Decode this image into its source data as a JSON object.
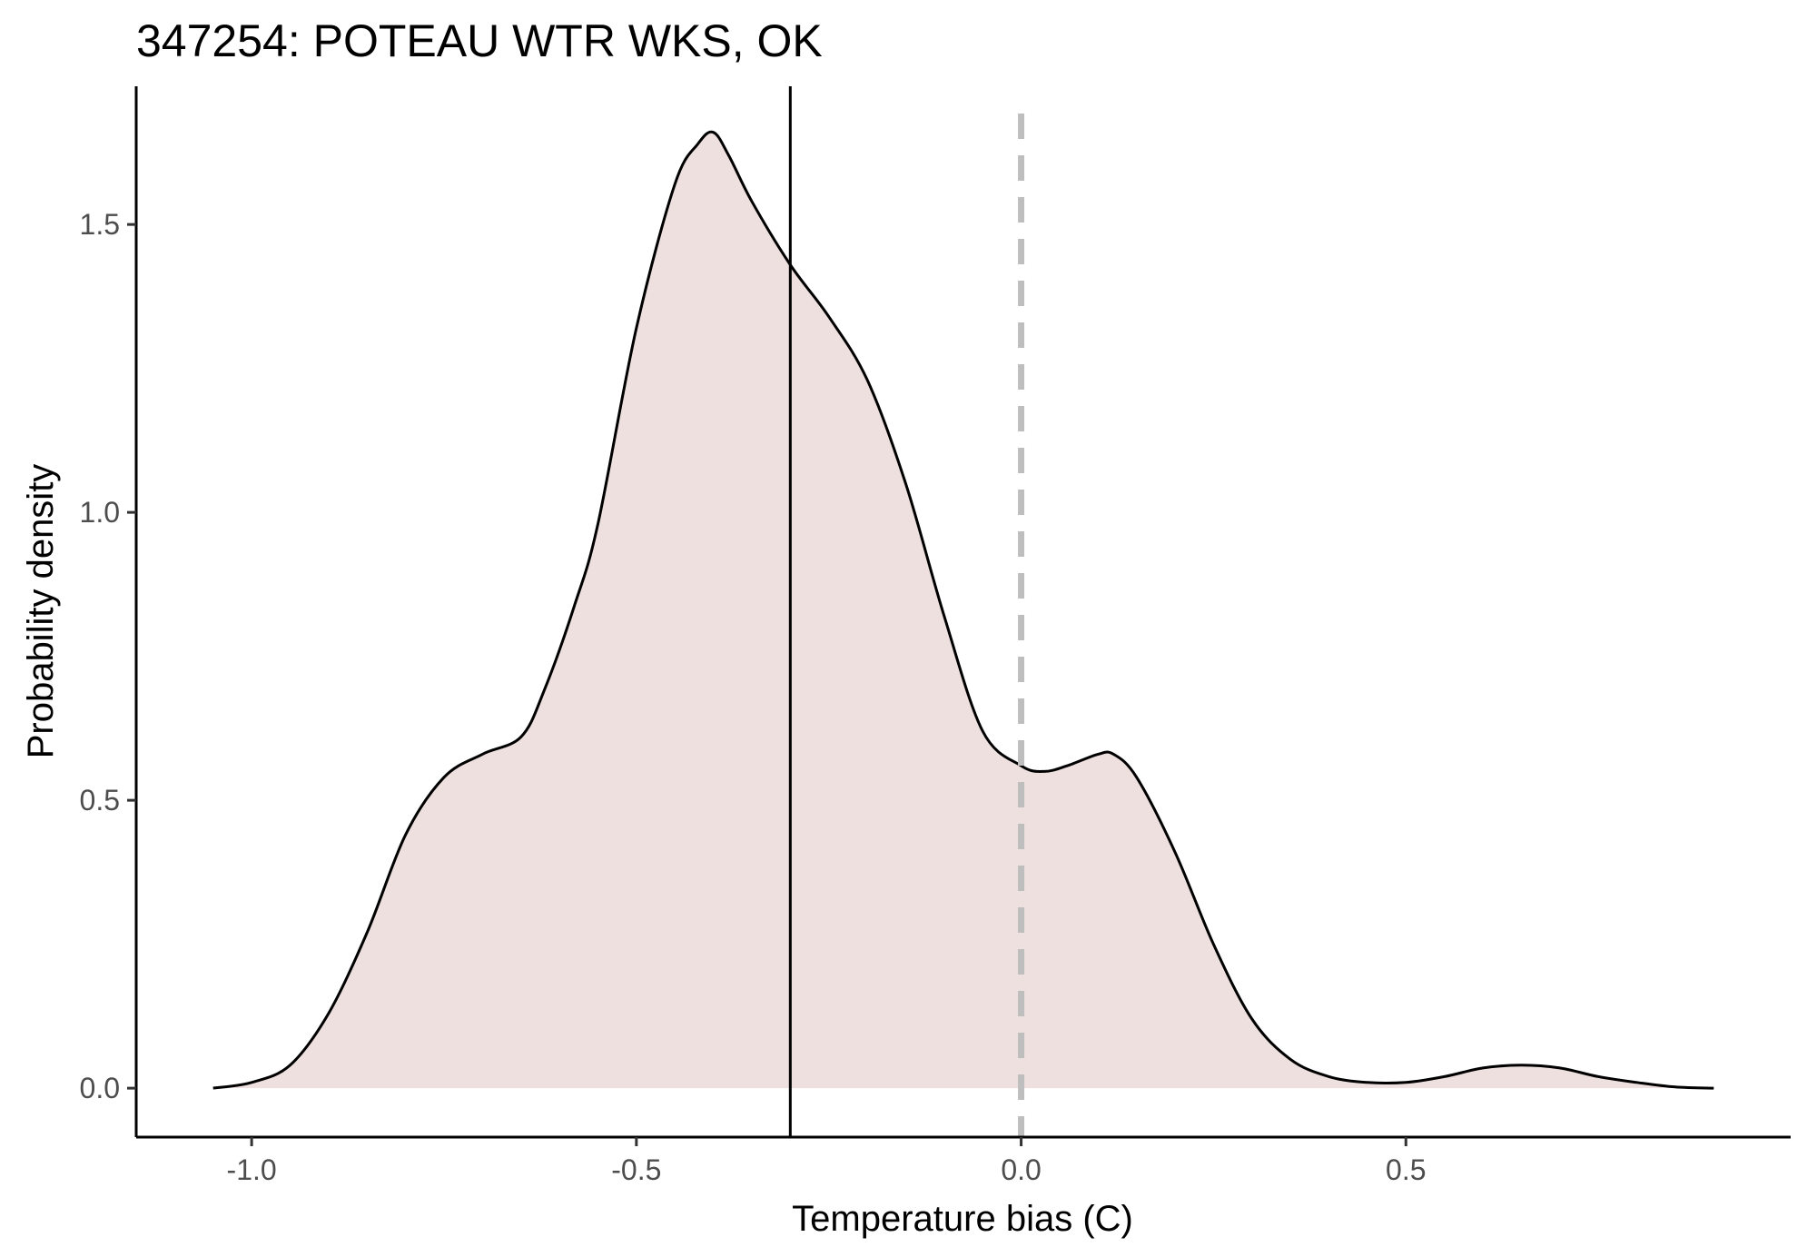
{
  "chart_data": {
    "type": "area",
    "title": "347254: POTEAU WTR WKS, OK",
    "xlabel": "Temperature bias (C)",
    "ylabel": "Probability density",
    "xlim": [
      -1.15,
      1.0
    ],
    "ylim": [
      -0.085,
      1.74
    ],
    "x_ticks": [
      -1.0,
      -0.5,
      0.0,
      0.5
    ],
    "x_tick_labels": [
      "-1.0",
      "-0.5",
      "0.0",
      "0.5"
    ],
    "y_ticks": [
      0.0,
      0.5,
      1.0,
      1.5
    ],
    "y_tick_labels": [
      "0.0",
      "0.5",
      "1.0",
      "1.5"
    ],
    "grid": false,
    "series": [
      {
        "fill": "#ede0de",
        "stroke": "#000000",
        "x": [
          -1.05,
          -1.0,
          -0.95,
          -0.9,
          -0.85,
          -0.8,
          -0.75,
          -0.7,
          -0.65,
          -0.62,
          -0.58,
          -0.55,
          -0.5,
          -0.45,
          -0.42,
          -0.4,
          -0.38,
          -0.35,
          -0.3,
          -0.25,
          -0.2,
          -0.15,
          -0.1,
          -0.05,
          0.0,
          0.03,
          0.06,
          0.1,
          0.12,
          0.15,
          0.2,
          0.25,
          0.3,
          0.35,
          0.4,
          0.45,
          0.5,
          0.55,
          0.6,
          0.65,
          0.7,
          0.75,
          0.8,
          0.85,
          0.9
        ],
        "y": [
          0.0,
          0.01,
          0.04,
          0.13,
          0.27,
          0.44,
          0.54,
          0.58,
          0.61,
          0.69,
          0.84,
          0.98,
          1.32,
          1.57,
          1.64,
          1.66,
          1.62,
          1.54,
          1.43,
          1.34,
          1.23,
          1.05,
          0.82,
          0.62,
          0.56,
          0.55,
          0.56,
          0.58,
          0.58,
          0.54,
          0.41,
          0.25,
          0.12,
          0.05,
          0.02,
          0.01,
          0.01,
          0.02,
          0.035,
          0.04,
          0.035,
          0.02,
          0.01,
          0.002,
          0.0
        ]
      }
    ],
    "vlines": [
      {
        "x": -0.3,
        "style": "solid",
        "color": "#000000"
      },
      {
        "x": 0.0,
        "style": "dashed",
        "color": "#bebebe"
      }
    ]
  }
}
